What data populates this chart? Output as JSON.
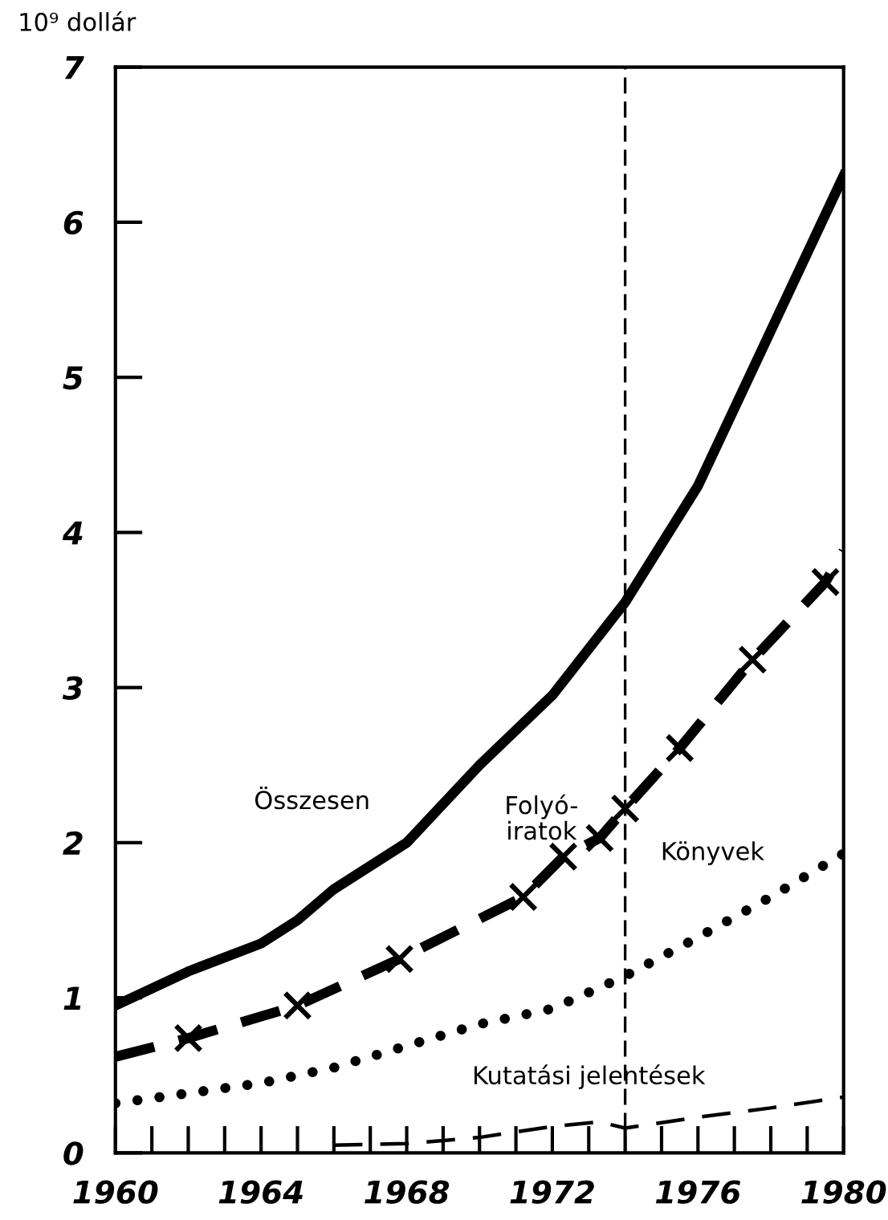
{
  "chart_data": {
    "type": "line",
    "ylabel": "10⁹ dollár",
    "xlim": [
      1960,
      1980
    ],
    "ylim": [
      0,
      7
    ],
    "xticks": [
      1960,
      1964,
      1968,
      1972,
      1976,
      1980
    ],
    "yticks": [
      0,
      1,
      2,
      3,
      4,
      5,
      6,
      7
    ],
    "grid": false,
    "legend": false,
    "series": [
      {
        "color": "#000000",
        "line_style": "solid",
        "marker": "none",
        "x": [
          1960,
          1962,
          1964,
          1965,
          1966,
          1968,
          1970,
          1972,
          1974,
          1976,
          1978,
          1980
        ],
        "values": [
          0.95,
          1.17,
          1.35,
          1.5,
          1.7,
          2.0,
          2.5,
          2.95,
          3.55,
          4.3,
          5.3,
          6.3
        ]
      },
      {
        "color": "#000000",
        "line_style": "dashed",
        "marker": "cross",
        "x": [
          1960,
          1962,
          1965,
          1967.8,
          1971.2,
          1972.3,
          1973.3,
          1974,
          1975.5,
          1977.5,
          1979.5,
          1980
        ],
        "values": [
          0.62,
          0.74,
          0.95,
          1.25,
          1.65,
          1.91,
          2.03,
          2.22,
          2.61,
          3.18,
          3.68,
          3.88
        ]
      },
      {
        "color": "#000000",
        "line_style": "dotted",
        "marker": "none",
        "x": [
          1960,
          1964,
          1966,
          1968,
          1970,
          1972,
          1974,
          1976,
          1978,
          1980
        ],
        "values": [
          0.32,
          0.45,
          0.55,
          0.69,
          0.83,
          0.93,
          1.14,
          1.39,
          1.65,
          1.93
        ]
      },
      {
        "color": "#000000",
        "line_style": "dashed",
        "marker": "none",
        "x": [
          1966,
          1968,
          1970,
          1972,
          1973.3,
          1974,
          1976,
          1978,
          1980
        ],
        "values": [
          0.05,
          0.06,
          0.1,
          0.17,
          0.2,
          0.16,
          0.23,
          0.29,
          0.36
        ]
      }
    ],
    "ref_lines": [
      {
        "axis": "x",
        "value": 1974,
        "line_style": "dashed",
        "color": "#000000"
      }
    ],
    "annotations": [
      "Összesen",
      "Folyó-\niratok",
      "Könyvek",
      "Kutatási jelentések"
    ]
  }
}
